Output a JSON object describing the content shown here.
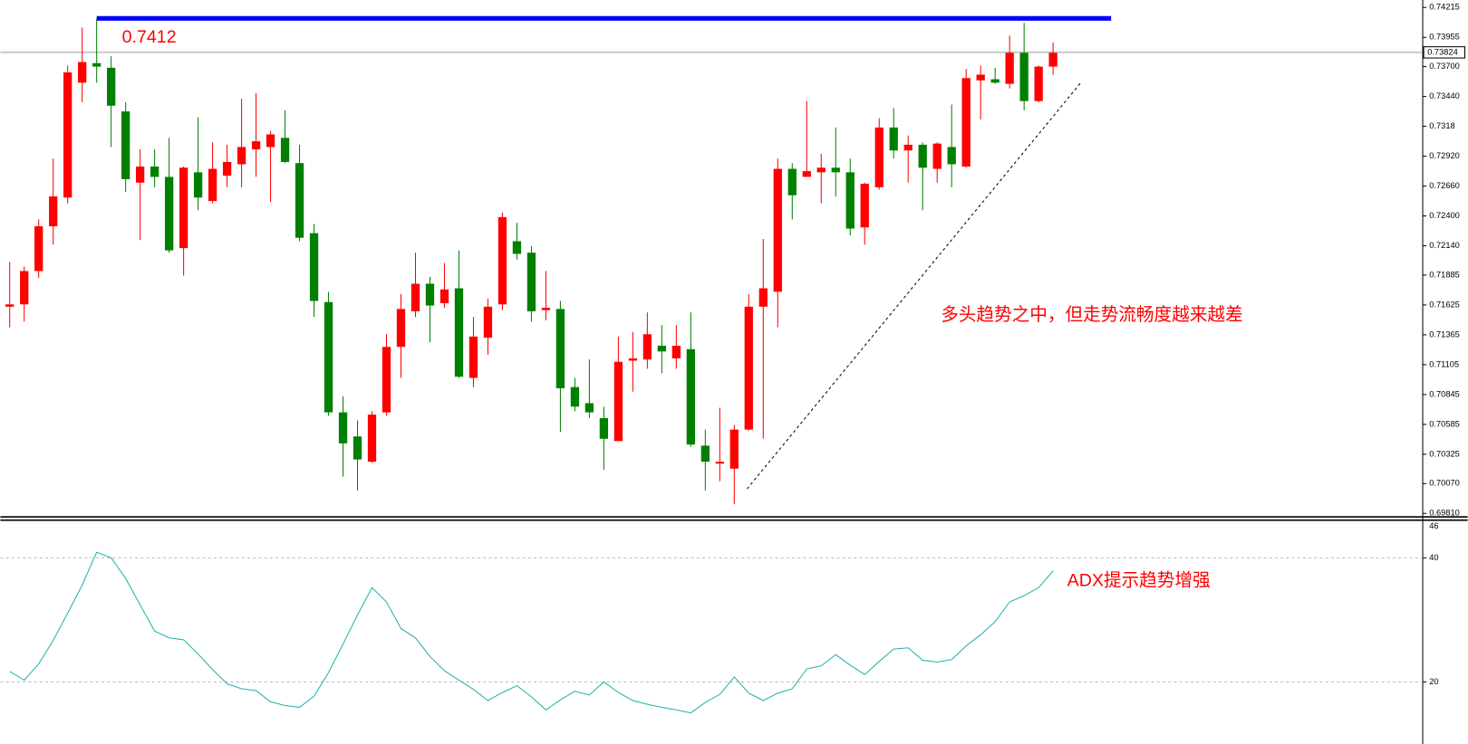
{
  "chart_data": [
    {
      "type": "candlestick",
      "open": [
        0.7161,
        0.7163,
        0.7192,
        0.7231,
        0.7256,
        0.7356,
        0.7373,
        0.7369,
        0.7331,
        0.7269,
        0.7283,
        0.7274,
        0.7212,
        0.7278,
        0.7253,
        0.7275,
        0.7285,
        0.7298,
        0.73,
        0.7308,
        0.7286,
        0.7225,
        0.7165,
        0.7069,
        0.7048,
        0.7026,
        0.7069,
        0.7126,
        0.7157,
        0.7181,
        0.7164,
        0.7177,
        0.7099,
        0.7134,
        0.7163,
        0.7218,
        0.7208,
        0.7158,
        0.7159,
        0.7091,
        0.7077,
        0.7064,
        0.7044,
        0.7114,
        0.7115,
        0.7127,
        0.7116,
        0.7124,
        0.704,
        0.7025,
        0.702,
        0.7054,
        0.7161,
        0.7174,
        0.7281,
        0.7274,
        0.7278,
        0.7282,
        0.7278,
        0.723,
        0.7265,
        0.7317,
        0.7297,
        0.7302,
        0.7281,
        0.73,
        0.7283,
        0.7358,
        0.7359,
        0.7355,
        0.7382,
        0.734,
        0.737
      ],
      "high": [
        0.72,
        0.7196,
        0.7237,
        0.729,
        0.7371,
        0.7404,
        0.7412,
        0.7379,
        0.7339,
        0.7298,
        0.7298,
        0.7308,
        0.7283,
        0.7326,
        0.7304,
        0.7302,
        0.7342,
        0.7347,
        0.7314,
        0.7332,
        0.7302,
        0.7233,
        0.7174,
        0.7083,
        0.7062,
        0.707,
        0.7137,
        0.7172,
        0.7208,
        0.7187,
        0.7199,
        0.721,
        0.7152,
        0.7168,
        0.7243,
        0.7234,
        0.7214,
        0.7192,
        0.7166,
        0.7099,
        0.7115,
        0.7074,
        0.7135,
        0.7139,
        0.7156,
        0.7145,
        0.7145,
        0.7156,
        0.7054,
        0.7073,
        0.7058,
        0.7172,
        0.722,
        0.729,
        0.7286,
        0.734,
        0.7294,
        0.7317,
        0.729,
        0.7269,
        0.7325,
        0.7334,
        0.731,
        0.7304,
        0.7304,
        0.7337,
        0.7368,
        0.7371,
        0.7369,
        0.7397,
        0.7408,
        0.7371,
        0.7391
      ],
      "low": [
        0.7143,
        0.7148,
        0.7186,
        0.7215,
        0.7251,
        0.7339,
        0.7356,
        0.73,
        0.7261,
        0.7219,
        0.7265,
        0.7208,
        0.7188,
        0.7245,
        0.7251,
        0.7265,
        0.7265,
        0.7274,
        0.7252,
        0.7286,
        0.7218,
        0.7152,
        0.7066,
        0.7013,
        0.7001,
        0.7025,
        0.7066,
        0.7099,
        0.7152,
        0.713,
        0.716,
        0.7099,
        0.7091,
        0.7119,
        0.7158,
        0.7202,
        0.7148,
        0.7149,
        0.7052,
        0.707,
        0.7064,
        0.7019,
        0.7044,
        0.7087,
        0.7107,
        0.7103,
        0.7107,
        0.7039,
        0.7001,
        0.7009,
        0.6989,
        0.7053,
        0.7046,
        0.7143,
        0.7237,
        0.7274,
        0.7251,
        0.7257,
        0.7223,
        0.7215,
        0.7263,
        0.729,
        0.7269,
        0.7245,
        0.7269,
        0.7265,
        0.7282,
        0.7324,
        0.7355,
        0.7351,
        0.7332,
        0.7339,
        0.7363
      ],
      "close": [
        0.7163,
        0.7192,
        0.7231,
        0.7257,
        0.7365,
        0.7374,
        0.737,
        0.7336,
        0.7272,
        0.7283,
        0.7274,
        0.721,
        0.7282,
        0.7256,
        0.7281,
        0.7287,
        0.73,
        0.7305,
        0.7311,
        0.7287,
        0.7221,
        0.7166,
        0.7069,
        0.7042,
        0.7028,
        0.7067,
        0.7126,
        0.7159,
        0.7181,
        0.7162,
        0.7176,
        0.71,
        0.7135,
        0.7161,
        0.7239,
        0.7207,
        0.7157,
        0.716,
        0.709,
        0.7074,
        0.7069,
        0.7046,
        0.7113,
        0.7116,
        0.7137,
        0.7122,
        0.7127,
        0.7041,
        0.7026,
        0.7026,
        0.7054,
        0.7161,
        0.7177,
        0.7281,
        0.7258,
        0.7279,
        0.7282,
        0.7278,
        0.7229,
        0.7268,
        0.7317,
        0.7297,
        0.7302,
        0.7282,
        0.7303,
        0.7285,
        0.736,
        0.7363,
        0.7356,
        0.7382,
        0.734,
        0.737,
        0.7382
      ],
      "up_color": "#ff0000",
      "down_color": "#008000",
      "ylim": [
        0.6978,
        0.7428
      ],
      "yticks": [
        0.74215,
        0.73955,
        {
          "value": 0.737,
          "label": "0.73700"
        },
        {
          "value": 0.7344,
          "label": "0.73440"
        },
        0.7318,
        {
          "value": 0.7292,
          "label": "0.72920"
        },
        {
          "value": 0.7266,
          "label": "0.72660"
        },
        {
          "value": 0.724,
          "label": "0.72400"
        },
        {
          "value": 0.7214,
          "label": "0.72140"
        },
        0.71885,
        0.71625,
        0.71365,
        0.71105,
        0.70845,
        0.70585,
        0.70325,
        {
          "value": 0.7007,
          "label": "0.70070"
        },
        {
          "value": 0.6981,
          "label": "0.69810"
        }
      ],
      "hline": {
        "value": 0.7412,
        "color": "#0000ff"
      },
      "current_price": 0.73824,
      "annotation": "多头趋势之中，但走势流畅度越来越差"
    },
    {
      "type": "line",
      "values": [
        21.7,
        20.3,
        22.9,
        26.7,
        31.1,
        35.6,
        40.9,
        40.0,
        36.7,
        32.4,
        28.2,
        27.1,
        26.8,
        24.5,
        22.0,
        19.7,
        18.9,
        18.6,
        16.8,
        16.2,
        15.9,
        17.7,
        21.5,
        26.1,
        30.8,
        35.2,
        32.9,
        28.6,
        27.1,
        24.1,
        21.8,
        20.3,
        18.8,
        17.0,
        18.3,
        19.4,
        17.6,
        15.5,
        17.1,
        18.5,
        17.9,
        20.0,
        18.3,
        17.0,
        16.4,
        15.9,
        15.5,
        15.0,
        16.7,
        18.0,
        20.8,
        18.2,
        17.0,
        18.2,
        18.9,
        22.1,
        22.6,
        24.4,
        22.7,
        21.2,
        23.3,
        25.3,
        25.5,
        23.5,
        23.2,
        23.6,
        25.8,
        27.6,
        29.7,
        32.9,
        33.9,
        35.2,
        37.9
      ],
      "color": "#20b2aa",
      "ylim": [
        10,
        46
      ],
      "yticks": [
        20,
        40
      ],
      "grid": true,
      "annotation": "ADX提示趋势增强"
    }
  ]
}
